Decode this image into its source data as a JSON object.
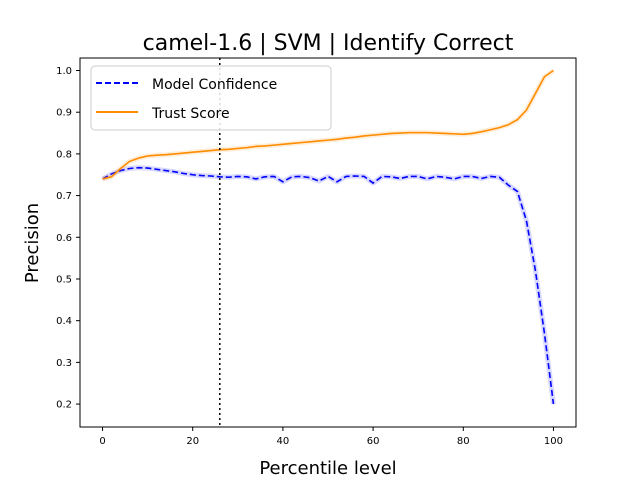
{
  "chart_data": {
    "type": "line",
    "title": "camel-1.6 | SVM | Identify Correct",
    "xlabel": "Percentile level",
    "ylabel": "Precision",
    "xlim": [
      -5,
      105
    ],
    "ylim": [
      0.145,
      1.03
    ],
    "xticks": [
      0,
      20,
      40,
      60,
      80,
      100
    ],
    "yticks": [
      0.2,
      0.3,
      0.4,
      0.5,
      0.6,
      0.7,
      0.8,
      0.9,
      1.0
    ],
    "xtick_labels": [
      "0",
      "20",
      "40",
      "60",
      "80",
      "100"
    ],
    "ytick_labels": [
      "0.2",
      "0.3",
      "0.4",
      "0.5",
      "0.6",
      "0.7",
      "0.8",
      "0.9",
      "1.0"
    ],
    "grid": false,
    "legend_position": "top-left",
    "vline": {
      "x": 26,
      "style": "dotted",
      "color": "#000000"
    },
    "series": [
      {
        "name": "Model Confidence",
        "color": "#0000ff",
        "style": "dashed",
        "x": [
          0,
          2,
          4,
          6,
          8,
          10,
          12,
          14,
          16,
          18,
          20,
          22,
          24,
          26,
          28,
          30,
          32,
          34,
          36,
          38,
          40,
          42,
          44,
          46,
          48,
          50,
          52,
          54,
          56,
          58,
          60,
          62,
          64,
          66,
          68,
          70,
          72,
          74,
          76,
          78,
          80,
          82,
          84,
          86,
          88,
          90,
          92,
          94,
          96,
          98,
          100
        ],
        "values": [
          0.74,
          0.752,
          0.76,
          0.765,
          0.767,
          0.766,
          0.763,
          0.76,
          0.757,
          0.753,
          0.75,
          0.748,
          0.747,
          0.745,
          0.744,
          0.746,
          0.745,
          0.74,
          0.745,
          0.746,
          0.733,
          0.745,
          0.746,
          0.743,
          0.735,
          0.746,
          0.733,
          0.746,
          0.747,
          0.746,
          0.73,
          0.746,
          0.745,
          0.741,
          0.746,
          0.746,
          0.74,
          0.746,
          0.744,
          0.74,
          0.746,
          0.746,
          0.741,
          0.746,
          0.744,
          0.725,
          0.71,
          0.64,
          0.52,
          0.37,
          0.2
        ]
      },
      {
        "name": "Trust Score",
        "color": "#ff8c00",
        "style": "solid",
        "x": [
          0,
          2,
          4,
          6,
          8,
          10,
          12,
          14,
          16,
          18,
          20,
          22,
          24,
          26,
          28,
          30,
          32,
          34,
          36,
          38,
          40,
          42,
          44,
          46,
          48,
          50,
          52,
          54,
          56,
          58,
          60,
          62,
          64,
          66,
          68,
          70,
          72,
          74,
          76,
          78,
          80,
          82,
          84,
          86,
          88,
          90,
          92,
          94,
          96,
          98,
          100
        ],
        "values": [
          0.74,
          0.745,
          0.765,
          0.782,
          0.79,
          0.795,
          0.797,
          0.798,
          0.8,
          0.802,
          0.804,
          0.806,
          0.808,
          0.81,
          0.811,
          0.813,
          0.815,
          0.818,
          0.819,
          0.821,
          0.823,
          0.825,
          0.827,
          0.829,
          0.831,
          0.833,
          0.835,
          0.838,
          0.84,
          0.843,
          0.845,
          0.847,
          0.849,
          0.85,
          0.851,
          0.851,
          0.851,
          0.85,
          0.849,
          0.848,
          0.847,
          0.849,
          0.853,
          0.858,
          0.863,
          0.87,
          0.882,
          0.905,
          0.945,
          0.985,
          1.0
        ]
      }
    ]
  }
}
